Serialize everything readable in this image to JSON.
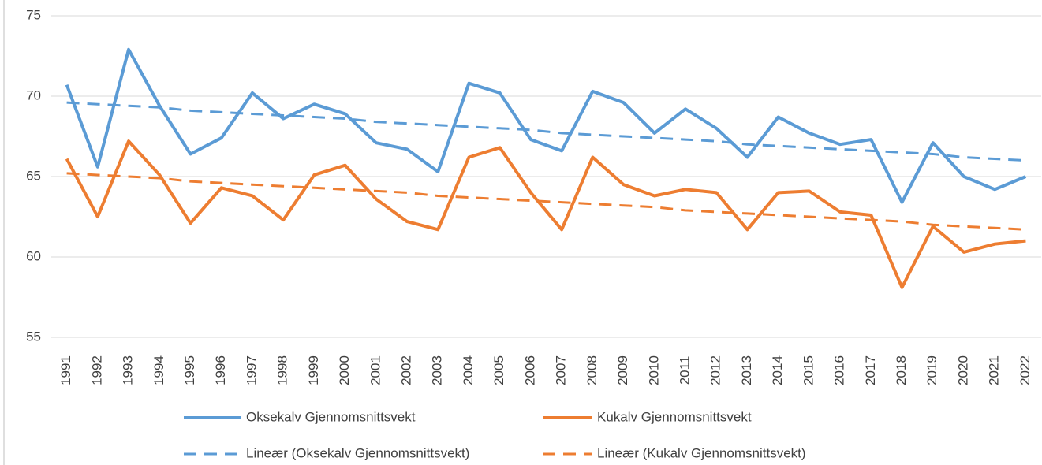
{
  "chart_data": {
    "type": "line",
    "categories": [
      "1991",
      "1992",
      "1993",
      "1994",
      "1995",
      "1996",
      "1997",
      "1998",
      "1999",
      "2000",
      "2001",
      "2002",
      "2003",
      "2004",
      "2005",
      "2006",
      "2007",
      "2008",
      "2009",
      "2010",
      "2011",
      "2012",
      "2013",
      "2014",
      "2015",
      "2016",
      "2017",
      "2018",
      "2019",
      "2020",
      "2021",
      "2022"
    ],
    "series": [
      {
        "name": "Oksekalv Gjennomsnittsvekt",
        "color": "#5b9bd5",
        "dashed": false,
        "values": [
          70.7,
          65.6,
          72.9,
          69.4,
          66.4,
          67.4,
          70.2,
          68.6,
          69.5,
          68.9,
          67.1,
          66.7,
          65.3,
          70.8,
          70.2,
          67.3,
          66.6,
          70.3,
          69.6,
          67.7,
          69.2,
          68.0,
          66.2,
          68.7,
          67.7,
          67.0,
          67.3,
          63.4,
          67.1,
          65.0,
          64.2,
          65.0
        ]
      },
      {
        "name": "Kukalv Gjennomsnittsvekt",
        "color": "#ed7d31",
        "dashed": false,
        "values": [
          66.1,
          62.5,
          67.2,
          65.1,
          62.1,
          64.3,
          63.8,
          62.3,
          65.1,
          65.7,
          63.6,
          62.2,
          61.7,
          66.2,
          66.8,
          64.0,
          61.7,
          66.2,
          64.5,
          63.8,
          64.2,
          64.0,
          61.7,
          64.0,
          64.1,
          62.8,
          62.6,
          58.1,
          61.9,
          60.3,
          60.8,
          61.0
        ]
      },
      {
        "name": "Lineær (Oksekalv Gjennomsnittsvekt)",
        "color": "#5b9bd5",
        "dashed": true,
        "values": [
          69.6,
          69.5,
          69.4,
          69.3,
          69.1,
          69.0,
          68.9,
          68.8,
          68.7,
          68.6,
          68.4,
          68.3,
          68.2,
          68.1,
          68.0,
          67.9,
          67.7,
          67.6,
          67.5,
          67.4,
          67.3,
          67.2,
          67.0,
          66.9,
          66.8,
          66.7,
          66.6,
          66.5,
          66.4,
          66.2,
          66.1,
          66.0
        ]
      },
      {
        "name": "Lineær (Kukalv Gjennomsnittsvekt)",
        "color": "#ed7d31",
        "dashed": true,
        "values": [
          65.2,
          65.1,
          65.0,
          64.9,
          64.7,
          64.6,
          64.5,
          64.4,
          64.3,
          64.2,
          64.1,
          64.0,
          63.8,
          63.7,
          63.6,
          63.5,
          63.4,
          63.3,
          63.2,
          63.1,
          62.9,
          62.8,
          62.7,
          62.6,
          62.5,
          62.4,
          62.3,
          62.2,
          62.0,
          61.9,
          61.8,
          61.7
        ]
      }
    ],
    "ylim": [
      55,
      75
    ],
    "yticks": [
      55,
      60,
      65,
      70,
      75
    ],
    "grid": true
  }
}
